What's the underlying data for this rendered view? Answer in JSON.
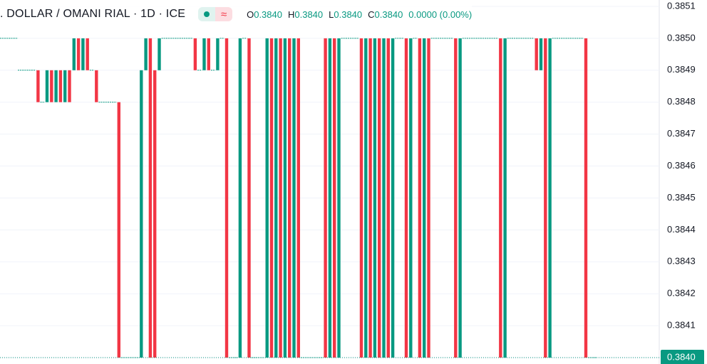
{
  "chart_data": {
    "type": "candlestick",
    "header": {
      "title": ". DOLLAR / OMANI RIAL · 1D · ICE",
      "ohlc": [
        {
          "key": "O",
          "value": "0.3840"
        },
        {
          "key": "H",
          "value": "0.3840"
        },
        {
          "key": "L",
          "value": "0.3840"
        },
        {
          "key": "C",
          "value": "0.3840"
        }
      ],
      "change": "0.0000 (0.00%)"
    },
    "up_color": "#089981",
    "down_color": "#f23645",
    "open": [
      0.385,
      0.385,
      0.385,
      0.385,
      0.3849,
      0.3849,
      0.3849,
      0.3849,
      0.3849,
      0.3848,
      0.3848,
      0.3849,
      0.3848,
      0.3849,
      0.3848,
      0.3849,
      0.3849,
      0.385,
      0.3849,
      0.385,
      0.3849,
      0.3849,
      0.3848,
      0.3848,
      0.3848,
      0.3848,
      0.3848,
      0.384,
      0.384,
      0.384,
      0.384,
      0.384,
      0.3849,
      0.385,
      0.3849,
      0.3849,
      0.385,
      0.385,
      0.385,
      0.385,
      0.385,
      0.385,
      0.385,
      0.385,
      0.3849,
      0.3849,
      0.385,
      0.3849,
      0.3849,
      0.385,
      0.385,
      0.384,
      0.384,
      0.384,
      0.385,
      0.385,
      0.384,
      0.384,
      0.384,
      0.384,
      0.385,
      0.384,
      0.385,
      0.384,
      0.385,
      0.384,
      0.385,
      0.384,
      0.384,
      0.384,
      0.384,
      0.384,
      0.385,
      0.384,
      0.385,
      0.384,
      0.385,
      0.385,
      0.385,
      0.385,
      0.385,
      0.384,
      0.385,
      0.384,
      0.385,
      0.384,
      0.385,
      0.384,
      0.385,
      0.385,
      0.385,
      0.384,
      0.385,
      0.385,
      0.384,
      0.385,
      0.385,
      0.385,
      0.385,
      0.385,
      0.385,
      0.385,
      0.384,
      0.385,
      0.385,
      0.385,
      0.385,
      0.385,
      0.385,
      0.385,
      0.385,
      0.385,
      0.384,
      0.385,
      0.385,
      0.385,
      0.385,
      0.385,
      0.385,
      0.385,
      0.3849,
      0.385,
      0.384,
      0.385,
      0.385,
      0.385,
      0.385,
      0.385,
      0.385,
      0.385,
      0.385,
      0.384,
      0.384
    ],
    "close": [
      0.385,
      0.385,
      0.385,
      0.385,
      0.3849,
      0.3849,
      0.3849,
      0.3849,
      0.3848,
      0.3848,
      0.3849,
      0.3848,
      0.3849,
      0.3848,
      0.3849,
      0.3848,
      0.385,
      0.3849,
      0.385,
      0.3849,
      0.3849,
      0.3848,
      0.3848,
      0.3848,
      0.3848,
      0.3848,
      0.384,
      0.384,
      0.384,
      0.384,
      0.384,
      0.3849,
      0.385,
      0.384,
      0.384,
      0.385,
      0.385,
      0.385,
      0.385,
      0.385,
      0.385,
      0.385,
      0.385,
      0.3849,
      0.3849,
      0.385,
      0.3849,
      0.3849,
      0.385,
      0.385,
      0.384,
      0.384,
      0.384,
      0.385,
      0.385,
      0.384,
      0.384,
      0.384,
      0.384,
      0.385,
      0.384,
      0.385,
      0.384,
      0.385,
      0.384,
      0.385,
      0.384,
      0.384,
      0.384,
      0.384,
      0.384,
      0.384,
      0.384,
      0.385,
      0.384,
      0.385,
      0.385,
      0.385,
      0.385,
      0.385,
      0.384,
      0.385,
      0.384,
      0.385,
      0.384,
      0.385,
      0.384,
      0.385,
      0.385,
      0.385,
      0.384,
      0.385,
      0.385,
      0.384,
      0.385,
      0.384,
      0.385,
      0.385,
      0.385,
      0.385,
      0.385,
      0.384,
      0.385,
      0.385,
      0.385,
      0.385,
      0.385,
      0.385,
      0.385,
      0.385,
      0.385,
      0.384,
      0.385,
      0.385,
      0.385,
      0.385,
      0.385,
      0.385,
      0.385,
      0.3849,
      0.385,
      0.384,
      0.385,
      0.385,
      0.385,
      0.385,
      0.385,
      0.385,
      0.385,
      0.385,
      0.384,
      0.384,
      0.384
    ],
    "ylim": [
      0.38398,
      0.38512
    ],
    "yticks": [
      {
        "value": 0.384,
        "label": "0.3840"
      },
      0.3841,
      0.3842,
      0.3843,
      0.3844,
      0.3845,
      0.3846,
      0.3847,
      0.3848,
      0.3849,
      {
        "value": 0.385,
        "label": "0.3850"
      },
      0.3851
    ],
    "grid": true,
    "last_price": {
      "value": 0.384,
      "label": "0.3840"
    }
  }
}
